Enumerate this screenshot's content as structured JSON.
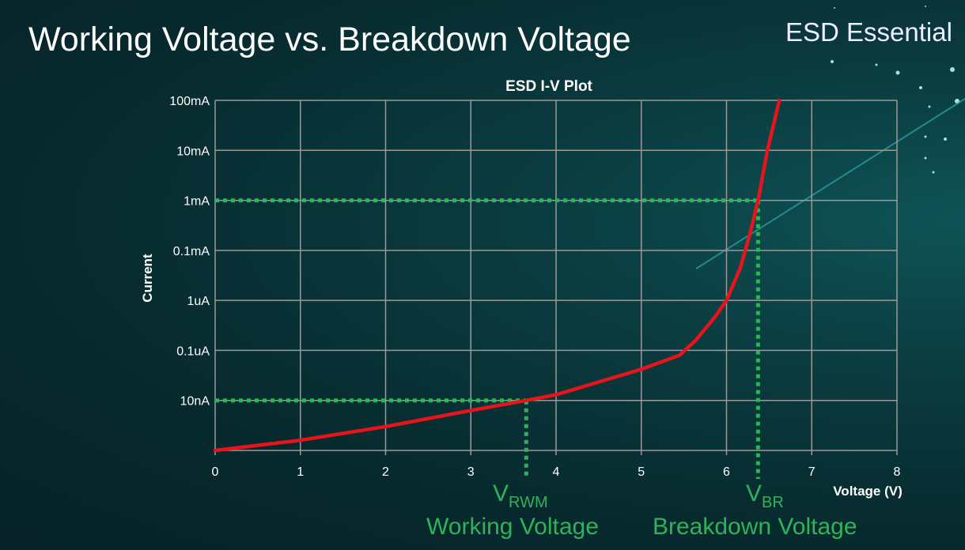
{
  "slide": {
    "title": "Working Voltage vs. Breakdown Voltage",
    "brand": "ESD Essential"
  },
  "annotations": {
    "vrwm_symbol": "V",
    "vrwm_sub": "RWM",
    "vrwm_label": "Working Voltage",
    "vbr_symbol": "V",
    "vbr_sub": "BR",
    "vbr_label": "Breakdown Voltage"
  },
  "chart_data": {
    "type": "line",
    "title": "ESD I-V Plot",
    "xlabel": "Voltage (V)",
    "ylabel": "Current",
    "xlim": [
      0,
      8
    ],
    "x_ticks": [
      0,
      1,
      2,
      3,
      4,
      5,
      6,
      7,
      8
    ],
    "y_scale": "log",
    "y_ticks": [
      {
        "label": "100mA",
        "value": 0.1
      },
      {
        "label": "10mA",
        "value": 0.01
      },
      {
        "label": "1mA",
        "value": 0.001
      },
      {
        "label": "0.1mA",
        "value": 0.0001
      },
      {
        "label": "1uA",
        "value": 1e-06
      },
      {
        "label": "0.1uA",
        "value": 1e-07
      },
      {
        "label": "10nA",
        "value": 1e-08
      }
    ],
    "ylim": [
      1e-09,
      0.1
    ],
    "grid": true,
    "colors": {
      "curve": "#e8141c",
      "markers": "#2fb35a",
      "grid": "#9a9a9a"
    },
    "series": [
      {
        "x": [
          0,
          1,
          2,
          3,
          3.65,
          4,
          5,
          5.45,
          5.64,
          5.87,
          6.0,
          6.16,
          6.27,
          6.37,
          6.48,
          6.62
        ],
        "y": [
          1e-09,
          1.6e-09,
          3e-09,
          6.3e-09,
          1e-08,
          1.3e-08,
          4.2e-08,
          8e-08,
          1.6e-07,
          4.8e-07,
          1e-06,
          1.9e-05,
          0.0002,
          0.001,
          0.01,
          0.1
        ]
      }
    ],
    "markers": [
      {
        "name": "VRWM",
        "voltage": 3.65,
        "current": 1e-08
      },
      {
        "name": "VBR",
        "voltage": 6.37,
        "current": 0.001
      }
    ]
  }
}
